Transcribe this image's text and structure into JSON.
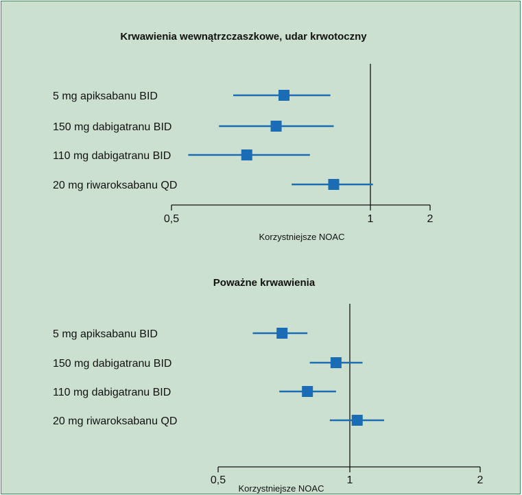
{
  "colors": {
    "background": "#cce0d0",
    "border": "#3a8a5a",
    "marker": "#1a6cb5",
    "axis": "#111111"
  },
  "chart_data": [
    {
      "type": "forest",
      "title": "Krwawienia wewnątrzczaszkowe, udar krwotoczny",
      "xlabel": "Korzystniejsze NOAC",
      "xscale": "log",
      "xlim": [
        0.5,
        2
      ],
      "ticks": [
        0.5,
        1,
        2
      ],
      "tick_labels": [
        "0,5",
        "1",
        "2"
      ],
      "reference_line": 1,
      "rows": [
        {
          "label": "5 mg apiksabanu BID",
          "estimate": 0.74,
          "ci": [
            0.62,
            0.87
          ]
        },
        {
          "label": "150 mg dabigatranu BID",
          "estimate": 0.72,
          "ci": [
            0.59,
            0.88
          ]
        },
        {
          "label": "110 mg dabigatranu BID",
          "estimate": 0.65,
          "ci": [
            0.53,
            0.81
          ]
        },
        {
          "label": "20 mg riwaroksabanu QD",
          "estimate": 0.88,
          "ci": [
            0.76,
            1.03
          ]
        }
      ]
    },
    {
      "type": "forest",
      "title": "Poważne krwawienia",
      "xlabel": "Korzystniejsze NOAC",
      "xscale": "log",
      "xlim": [
        0.5,
        2
      ],
      "ticks": [
        0.5,
        1,
        2
      ],
      "tick_labels": [
        "0,5",
        "1",
        "2"
      ],
      "reference_line": 1,
      "rows": [
        {
          "label": "5 mg apiksabanu BID",
          "estimate": 0.7,
          "ci": [
            0.6,
            0.8
          ]
        },
        {
          "label": "150 mg dabigatranu BID",
          "estimate": 0.93,
          "ci": [
            0.81,
            1.07
          ]
        },
        {
          "label": "110 mg dabigatranu BID",
          "estimate": 0.8,
          "ci": [
            0.69,
            0.93
          ]
        },
        {
          "label": "20 mg riwaroksabanu QD",
          "estimate": 1.04,
          "ci": [
            0.9,
            1.2
          ]
        }
      ]
    }
  ]
}
